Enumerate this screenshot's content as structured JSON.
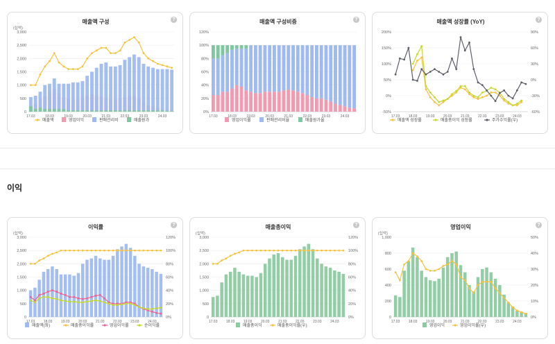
{
  "section": {
    "title": "이익"
  },
  "help_label": "?",
  "chart_data": [
    {
      "id": "c1",
      "type": "bar",
      "title": "매출액 구성",
      "unit_left": "(십억)",
      "categories": [
        "17.03",
        "17.06",
        "17.09",
        "17.12",
        "18.03",
        "18.06",
        "18.09",
        "18.12",
        "19.03",
        "19.06",
        "19.09",
        "19.12",
        "20.03",
        "20.06",
        "20.09",
        "20.12",
        "21.03",
        "21.06",
        "21.09",
        "21.12",
        "22.03",
        "22.06",
        "22.09",
        "22.12",
        "23.03",
        "23.06",
        "23.09",
        "23.12",
        "24.03",
        "24.06",
        "24.09"
      ],
      "xtick_labels": [
        "17.03",
        "18.03",
        "19.03",
        "20.03",
        "21.03",
        "22.03",
        "23.03",
        "24.03"
      ],
      "ylim_left": [
        0,
        3000
      ],
      "yticks_left": [
        "0",
        "500",
        "1,000",
        "1,500",
        "2,000",
        "2,500",
        "3,000"
      ],
      "series": [
        {
          "name": "매출액",
          "kind": "line",
          "color": "#f5c242",
          "values": [
            1000,
            1000,
            1400,
            1700,
            1900,
            2200,
            1850,
            1700,
            1600,
            1600,
            1600,
            1700,
            2000,
            2200,
            2300,
            2400,
            2400,
            2200,
            2200,
            2300,
            2600,
            2700,
            2800,
            2600,
            2200,
            2000,
            1900,
            1800,
            1750,
            1700,
            1650
          ]
        },
        {
          "name": "영업이익",
          "kind": "bar",
          "color": "#f29ab0",
          "values": [
            250,
            300,
            500,
            600,
            750,
            850,
            700,
            550,
            500,
            450,
            450,
            500,
            600,
            650,
            600,
            550,
            500,
            450,
            450,
            500,
            550,
            600,
            600,
            500,
            350,
            250,
            200,
            150,
            100,
            70,
            50
          ]
        },
        {
          "name": "판매관리비",
          "kind": "bar",
          "color": "#9fbaf0",
          "values": [
            550,
            600,
            750,
            1000,
            1050,
            1250,
            1050,
            1050,
            1050,
            1100,
            1100,
            1150,
            1350,
            1500,
            1650,
            1800,
            1850,
            1700,
            1700,
            1750,
            1950,
            2050,
            2150,
            2050,
            1800,
            1700,
            1650,
            1600,
            1600,
            1600,
            1580
          ]
        },
        {
          "name": "매출원가",
          "kind": "bar",
          "color": "#7fc7a0",
          "values": [
            200,
            100,
            150,
            100,
            100,
            100,
            100,
            100,
            50,
            50,
            50,
            50,
            50,
            50,
            50,
            50,
            50,
            50,
            50,
            50,
            50,
            50,
            50,
            50,
            50,
            50,
            50,
            50,
            50,
            30,
            20
          ]
        }
      ]
    },
    {
      "id": "c2",
      "type": "bar",
      "title": "매출액 구성비중",
      "stacked_percent": true,
      "categories": [
        "17.03",
        "17.06",
        "17.09",
        "17.12",
        "18.03",
        "18.06",
        "18.09",
        "18.12",
        "19.03",
        "19.06",
        "19.09",
        "19.12",
        "20.03",
        "20.06",
        "20.09",
        "20.12",
        "21.03",
        "21.06",
        "21.09",
        "21.12",
        "22.03",
        "22.06",
        "22.09",
        "22.12",
        "23.03",
        "23.06",
        "23.09",
        "23.12",
        "24.03",
        "24.06",
        "24.09"
      ],
      "xtick_labels": [
        "17.03",
        "18.03",
        "19.03",
        "20.03",
        "21.03",
        "22.03",
        "23.03",
        "24.03"
      ],
      "ylim_left": [
        0,
        120
      ],
      "yticks_left": [
        "0%",
        "20%",
        "40%",
        "60%",
        "80%",
        "100%",
        "120%"
      ],
      "series": [
        {
          "name": "영업이익률",
          "color": "#f29ab0",
          "values": [
            25,
            25,
            30,
            30,
            35,
            40,
            38,
            32,
            30,
            28,
            28,
            30,
            30,
            30,
            30,
            32,
            33,
            32,
            30,
            28,
            25,
            22,
            20,
            20,
            18,
            15,
            12,
            10,
            8,
            6,
            5
          ]
        },
        {
          "name": "판매관리비율",
          "color": "#9fbaf0",
          "values": [
            55,
            55,
            55,
            58,
            58,
            55,
            57,
            63,
            70,
            72,
            72,
            70,
            70,
            70,
            70,
            68,
            67,
            68,
            70,
            72,
            75,
            78,
            80,
            80,
            82,
            85,
            88,
            90,
            92,
            94,
            95
          ]
        },
        {
          "name": "매출원가율",
          "color": "#7fc7a0",
          "values": [
            20,
            20,
            15,
            12,
            7,
            5,
            5,
            5,
            0,
            0,
            0,
            0,
            0,
            0,
            0,
            0,
            0,
            0,
            0,
            0,
            0,
            0,
            0,
            0,
            0,
            0,
            0,
            0,
            0,
            0,
            0
          ]
        }
      ]
    },
    {
      "id": "c3",
      "type": "line",
      "title": "매출액 성장률 (YoY)",
      "categories": [
        "17.03",
        "17.06",
        "17.09",
        "17.12",
        "18.03",
        "18.06",
        "18.09",
        "18.12",
        "19.03",
        "19.06",
        "19.09",
        "19.12",
        "20.03",
        "20.06",
        "20.09",
        "20.12",
        "21.03",
        "21.06",
        "21.09",
        "21.12",
        "22.03",
        "22.06",
        "22.09",
        "22.12",
        "23.03",
        "23.06",
        "23.09",
        "23.12",
        "24.03",
        "24.06",
        "24.09"
      ],
      "xtick_labels": [
        "17.03",
        "18.03",
        "19.03",
        "20.03",
        "21.03",
        "22.03",
        "23.03",
        "24.03"
      ],
      "ylim_left": [
        -50,
        200
      ],
      "yticks_left": [
        "-50%",
        "0%",
        "50%",
        "100%",
        "150%",
        "200%"
      ],
      "ylim_right": [
        -60,
        90
      ],
      "yticks_right": [
        "-60%",
        "-30%",
        "0%",
        "30%",
        "60%",
        "90%"
      ],
      "series": [
        {
          "name": "매출액 성장률",
          "color": "#f5c242",
          "axis": "left",
          "values": [
            null,
            null,
            null,
            null,
            80,
            110,
            120,
            20,
            -5,
            -20,
            -30,
            -20,
            -10,
            0,
            10,
            25,
            20,
            5,
            -5,
            -10,
            -5,
            0,
            10,
            10,
            0,
            -15,
            -25,
            -30,
            -30,
            -20,
            null
          ]
        },
        {
          "name": "매출총이익 성장률",
          "color": "#c6d82f",
          "axis": "left",
          "values": [
            null,
            null,
            null,
            null,
            100,
            130,
            155,
            30,
            10,
            -5,
            -20,
            -15,
            -10,
            5,
            15,
            30,
            30,
            10,
            0,
            -5,
            10,
            15,
            25,
            20,
            10,
            -10,
            -20,
            -30,
            -25,
            -15,
            null
          ]
        },
        {
          "name": "주가수익률(우)",
          "color": "#5c5f6a",
          "axis": "right",
          "values": [
            10,
            40,
            38,
            60,
            0,
            -2,
            20,
            10,
            15,
            20,
            15,
            10,
            15,
            40,
            20,
            80,
            55,
            70,
            20,
            -5,
            -10,
            -20,
            -30,
            -40,
            -25,
            -20,
            -30,
            -35,
            -20,
            -5,
            -8
          ]
        }
      ]
    },
    {
      "id": "c4",
      "type": "bar",
      "title": "이익률",
      "unit_left": "(십억)",
      "categories": [
        "17.03",
        "17.06",
        "17.09",
        "17.12",
        "18.03",
        "18.06",
        "18.09",
        "18.12",
        "19.03",
        "19.06",
        "19.09",
        "19.12",
        "20.03",
        "20.06",
        "20.09",
        "20.12",
        "21.03",
        "21.06",
        "21.09",
        "21.12",
        "22.03",
        "22.06",
        "22.09",
        "22.12",
        "23.03",
        "23.06",
        "23.09",
        "23.12",
        "24.03",
        "24.06",
        "24.09"
      ],
      "xtick_labels": [
        "17.03",
        "18.03",
        "19.03",
        "20.03",
        "21.03",
        "22.03",
        "23.03",
        "24.03"
      ],
      "ylim_left": [
        0,
        3000
      ],
      "yticks_left": [
        "0",
        "500",
        "1,000",
        "1,500",
        "2,000",
        "2,500",
        "3,000"
      ],
      "ylim_right": [
        0,
        120
      ],
      "yticks_right": [
        "0%",
        "20%",
        "40%",
        "60%",
        "80%",
        "100%",
        "120%"
      ],
      "series": [
        {
          "name": "매출액(좌)",
          "kind": "bar",
          "color": "#9fbaf0",
          "axis": "left",
          "values": [
            1000,
            1100,
            1400,
            1700,
            1800,
            1900,
            1800,
            1600,
            1600,
            1600,
            1550,
            1650,
            2000,
            2150,
            2200,
            2300,
            2200,
            2150,
            2150,
            2300,
            2550,
            2650,
            2750,
            2600,
            2300,
            2000,
            1900,
            1850,
            1800,
            1700,
            1620
          ]
        },
        {
          "name": "매출총이익률",
          "kind": "line",
          "color": "#f5c242",
          "axis": "right",
          "values": [
            80,
            80,
            85,
            88,
            92,
            95,
            97,
            100,
            100,
            100,
            100,
            100,
            100,
            100,
            100,
            100,
            100,
            100,
            100,
            100,
            100,
            100,
            100,
            100,
            100,
            100,
            100,
            100,
            100,
            100,
            100
          ]
        },
        {
          "name": "영업이익률",
          "kind": "line",
          "color": "#f06292",
          "axis": "right",
          "values": [
            30,
            25,
            33,
            35,
            38,
            40,
            38,
            35,
            33,
            30,
            30,
            28,
            27,
            28,
            30,
            32,
            33,
            28,
            22,
            20,
            20,
            20,
            22,
            22,
            20,
            15,
            12,
            10,
            8,
            6,
            5
          ]
        },
        {
          "name": "순이익률",
          "kind": "line",
          "color": "#c6d82f",
          "axis": "right",
          "values": [
            25,
            22,
            28,
            30,
            30,
            28,
            27,
            25,
            24,
            23,
            23,
            22,
            22,
            23,
            24,
            25,
            24,
            22,
            20,
            18,
            18,
            19,
            20,
            20,
            18,
            15,
            13,
            12,
            12,
            13,
            14
          ]
        }
      ]
    },
    {
      "id": "c5",
      "type": "bar",
      "title": "매출총이익",
      "unit_left": "(십억)",
      "categories": [
        "17.03",
        "17.06",
        "17.09",
        "17.12",
        "18.03",
        "18.06",
        "18.09",
        "18.12",
        "19.03",
        "19.06",
        "19.09",
        "19.12",
        "20.03",
        "20.06",
        "20.09",
        "20.12",
        "21.03",
        "21.06",
        "21.09",
        "21.12",
        "22.03",
        "22.06",
        "22.09",
        "22.12",
        "23.03",
        "23.06",
        "23.09",
        "23.12",
        "24.03",
        "24.06",
        "24.09"
      ],
      "xtick_labels": [
        "17.03",
        "18.03",
        "19.03",
        "20.03",
        "21.03",
        "22.03",
        "23.03",
        "24.03"
      ],
      "ylim_left": [
        0,
        3000
      ],
      "yticks_left": [
        "0",
        "500",
        "1,000",
        "1,500",
        "2,000",
        "2,500",
        "3,000"
      ],
      "ylim_right": [
        0,
        120
      ],
      "yticks_right": [
        "0%",
        "20%",
        "40%",
        "60%",
        "80%",
        "100%",
        "120%"
      ],
      "series": [
        {
          "name": "매출총이익",
          "kind": "bar",
          "color": "#8ccaa0",
          "axis": "left",
          "values": [
            750,
            800,
            1300,
            1600,
            1700,
            1850,
            1700,
            1600,
            1550,
            1550,
            1500,
            1650,
            2000,
            2200,
            2350,
            2400,
            2250,
            2150,
            2150,
            2300,
            2550,
            2650,
            2750,
            2550,
            2200,
            2000,
            1900,
            1850,
            1750,
            1700,
            1620
          ]
        },
        {
          "name": "매출총이익률(우)",
          "kind": "line",
          "color": "#f5c242",
          "axis": "right",
          "values": [
            80,
            80,
            85,
            88,
            92,
            95,
            97,
            100,
            100,
            100,
            100,
            100,
            100,
            100,
            100,
            100,
            100,
            100,
            100,
            100,
            100,
            100,
            100,
            100,
            100,
            100,
            100,
            100,
            100,
            100,
            100
          ]
        }
      ]
    },
    {
      "id": "c6",
      "type": "bar",
      "title": "영업이익",
      "unit_left": "(십억)",
      "categories": [
        "17.03",
        "17.06",
        "17.09",
        "17.12",
        "18.03",
        "18.06",
        "18.09",
        "18.12",
        "19.03",
        "19.06",
        "19.09",
        "19.12",
        "20.03",
        "20.06",
        "20.09",
        "20.12",
        "21.03",
        "21.06",
        "21.09",
        "21.12",
        "22.03",
        "22.06",
        "22.09",
        "22.12",
        "23.03",
        "23.06",
        "23.09",
        "23.12",
        "24.03",
        "24.06",
        "24.09"
      ],
      "xtick_labels": [
        "17.03",
        "18.03",
        "19.03",
        "20.03",
        "21.03",
        "22.03",
        "23.03",
        "24.03"
      ],
      "ylim_left": [
        0,
        1000
      ],
      "yticks_left": [
        "0",
        "200",
        "400",
        "600",
        "800",
        "1,000"
      ],
      "ylim_right": [
        0,
        50
      ],
      "yticks_right": [
        "0%",
        "10%",
        "20%",
        "30%",
        "40%",
        "50%"
      ],
      "series": [
        {
          "name": "영업이익",
          "kind": "bar",
          "color": "#8ccaa0",
          "axis": "left",
          "values": [
            270,
            250,
            580,
            700,
            870,
            750,
            580,
            500,
            460,
            450,
            480,
            620,
            750,
            800,
            820,
            650,
            560,
            400,
            320,
            500,
            600,
            620,
            560,
            480,
            400,
            280,
            180,
            130,
            80,
            60,
            50
          ]
        },
        {
          "name": "영업이익률(우)",
          "kind": "line",
          "color": "#f5c242",
          "axis": "right",
          "values": [
            28,
            23,
            33,
            35,
            40,
            38,
            35,
            30,
            29,
            29,
            30,
            32,
            33,
            35,
            33,
            25,
            23,
            18,
            15,
            20,
            22,
            22,
            22,
            18,
            15,
            12,
            9,
            6,
            4,
            3,
            2
          ]
        }
      ]
    }
  ]
}
